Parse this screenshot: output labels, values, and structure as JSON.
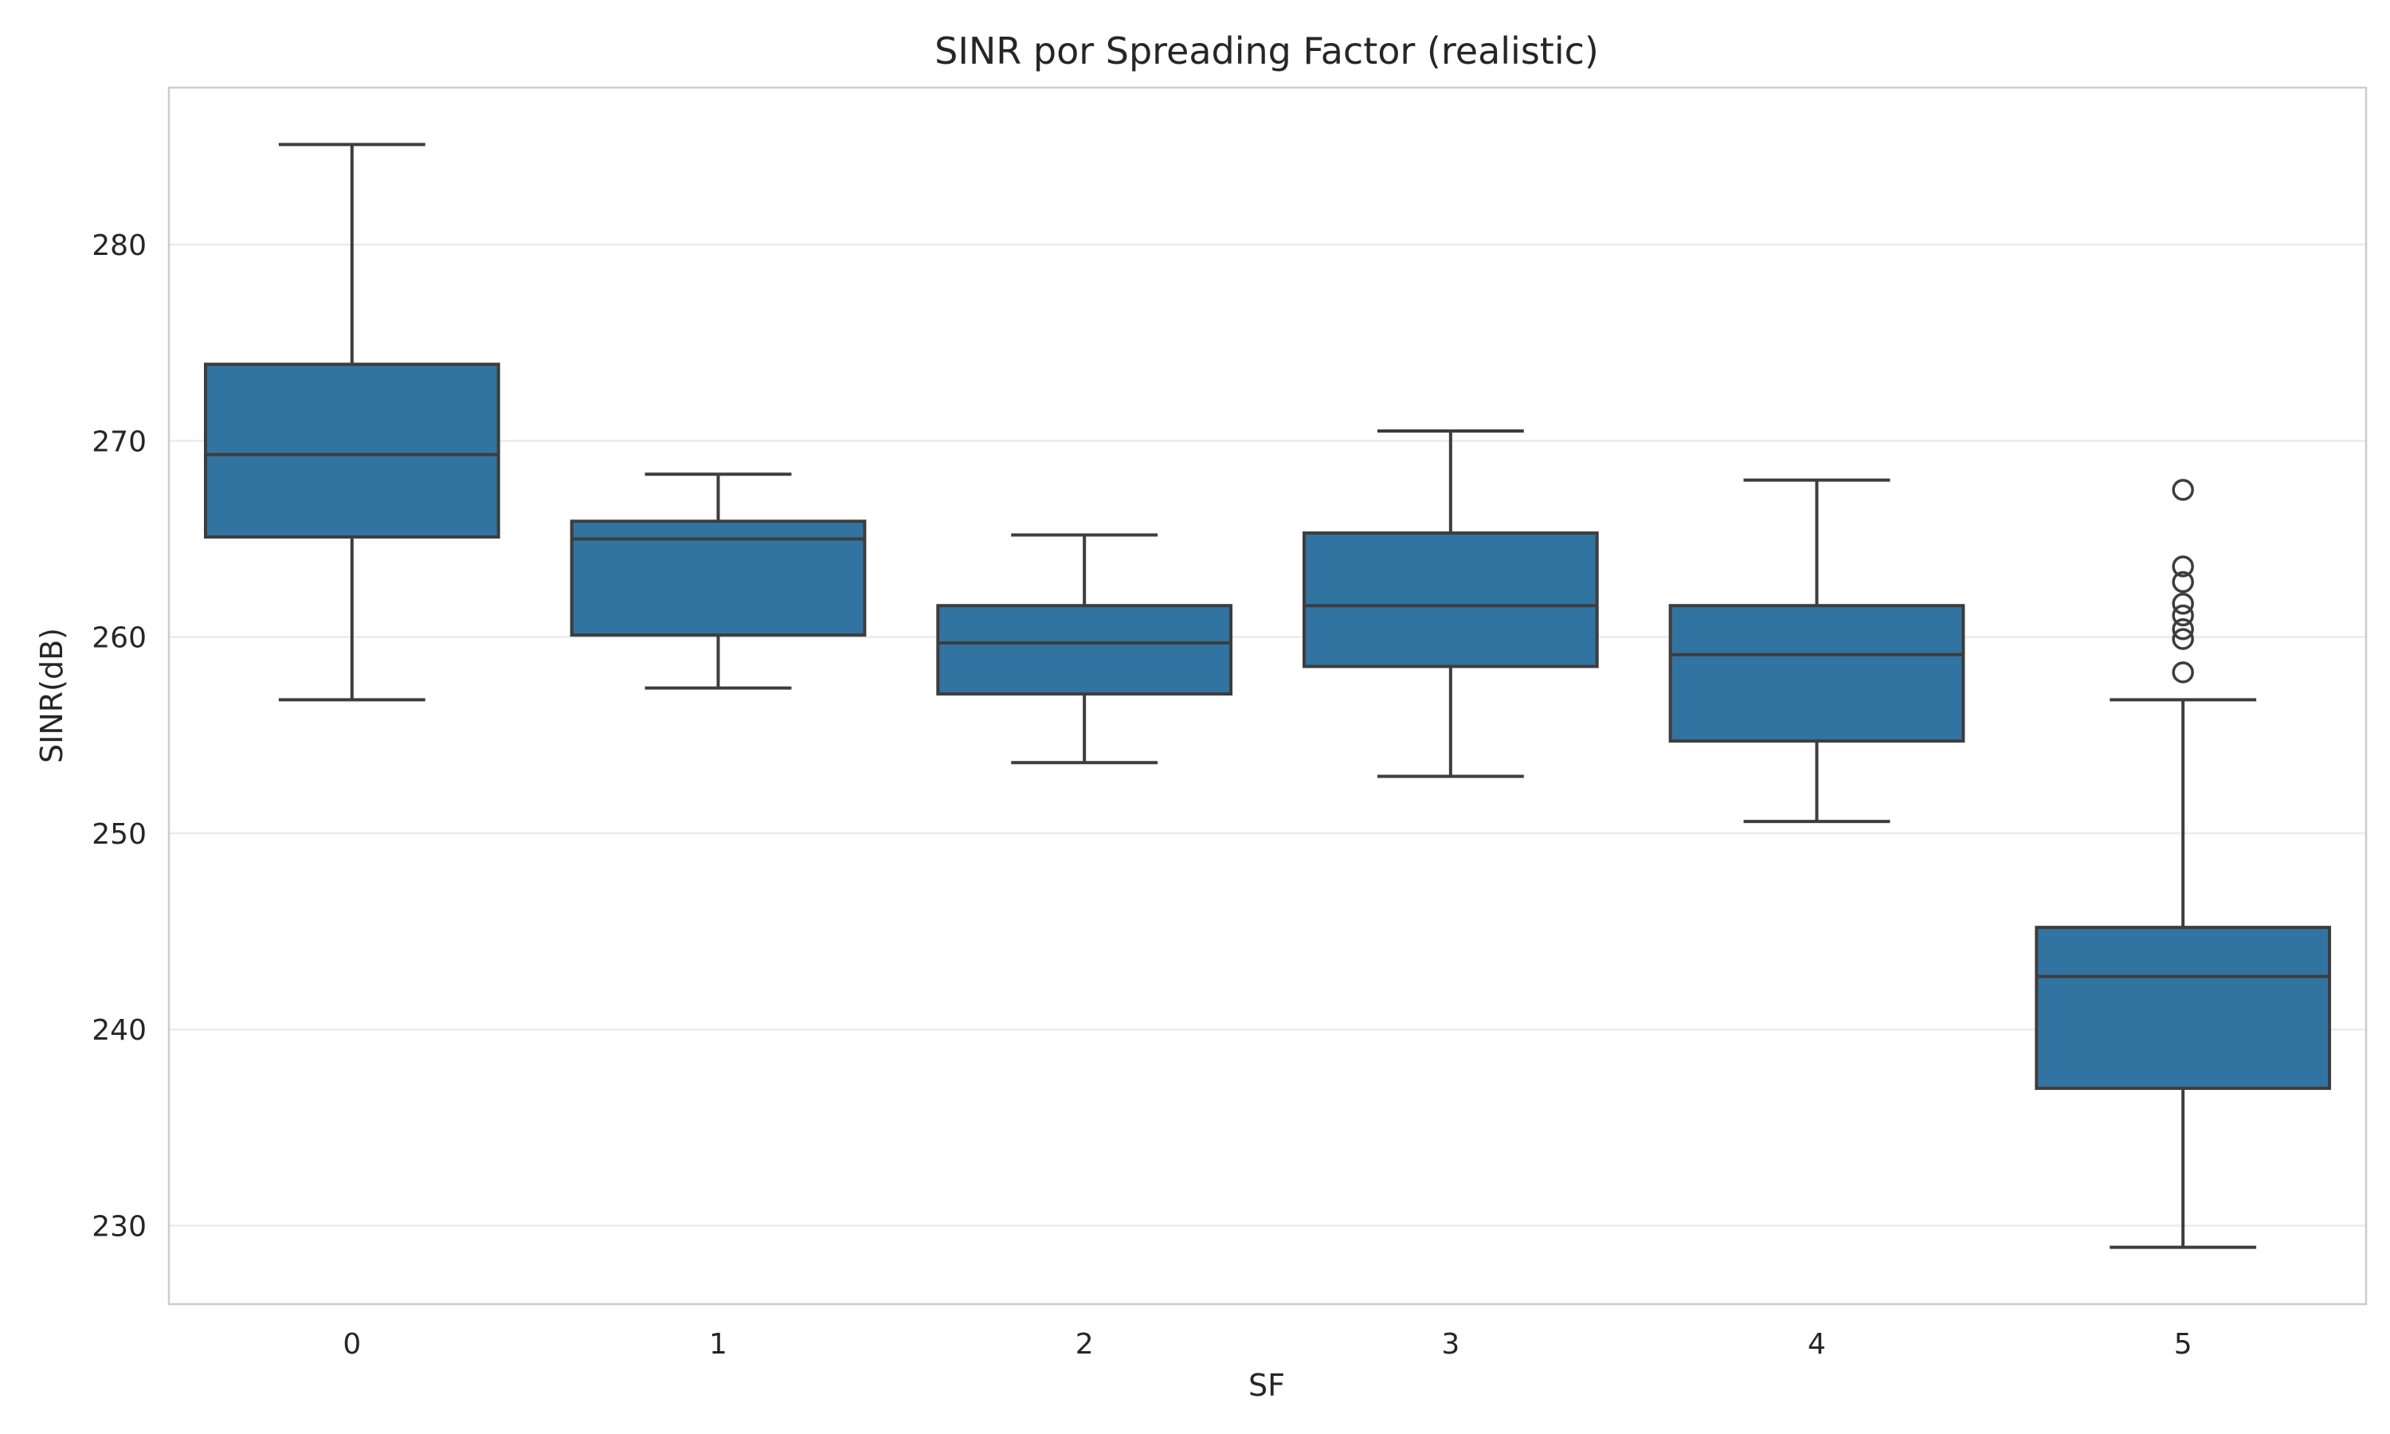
{
  "chart_data": {
    "type": "box",
    "title": "SINR por Spreading Factor (realistic)",
    "xlabel": "SF",
    "ylabel": "SINR(dB)",
    "ylim": [
      226,
      288
    ],
    "yticks": [
      230,
      240,
      250,
      260,
      270,
      280
    ],
    "grid": true,
    "box_color": "#3274a1",
    "series": [
      {
        "category": "0",
        "whisker_low": 256.8,
        "q1": 265.1,
        "median": 269.3,
        "q3": 273.9,
        "whisker_high": 285.1,
        "outliers": []
      },
      {
        "category": "1",
        "whisker_low": 257.4,
        "q1": 260.1,
        "median": 265.0,
        "q3": 265.9,
        "whisker_high": 268.3,
        "outliers": []
      },
      {
        "category": "2",
        "whisker_low": 253.6,
        "q1": 257.1,
        "median": 259.7,
        "q3": 261.6,
        "whisker_high": 265.2,
        "outliers": []
      },
      {
        "category": "3",
        "whisker_low": 252.9,
        "q1": 258.5,
        "median": 261.6,
        "q3": 265.3,
        "whisker_high": 270.5,
        "outliers": []
      },
      {
        "category": "4",
        "whisker_low": 250.6,
        "q1": 254.7,
        "median": 259.1,
        "q3": 261.6,
        "whisker_high": 268.0,
        "outliers": []
      },
      {
        "category": "5",
        "whisker_low": 228.9,
        "q1": 237.0,
        "median": 242.7,
        "q3": 245.2,
        "whisker_high": 256.8,
        "outliers": [
          267.5,
          263.6,
          262.8,
          261.7,
          261.1,
          260.4,
          259.9,
          258.2
        ]
      }
    ]
  }
}
